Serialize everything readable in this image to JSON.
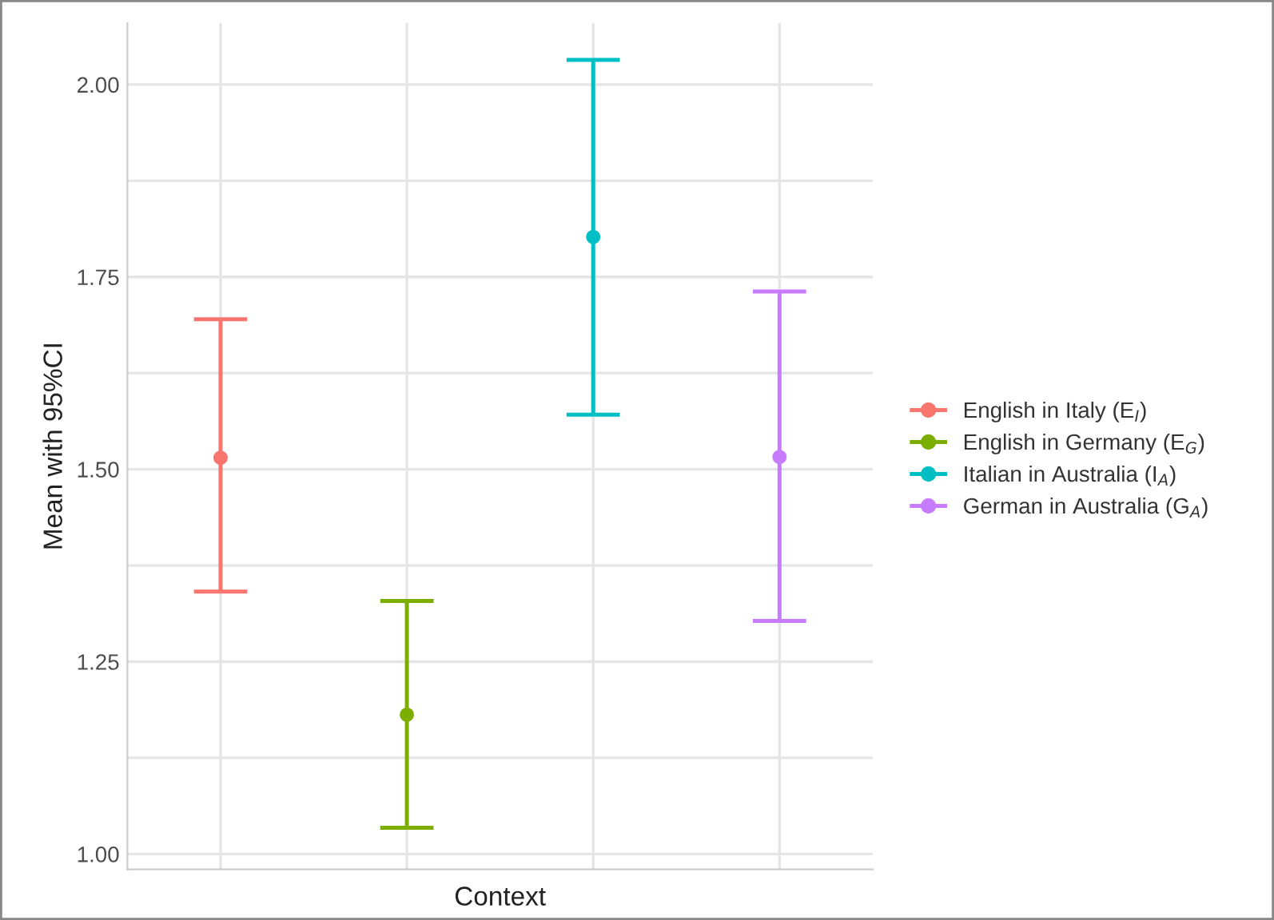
{
  "chart_data": {
    "type": "scatter",
    "xlabel": "Context",
    "ylabel": "Mean with 95%CI",
    "categories": [
      null,
      null,
      null,
      null
    ],
    "series": [
      {
        "name": "English in Italy (E$_{I}$)",
        "color": "#f8766d",
        "values": [
          1.515,
          null,
          null,
          null
        ],
        "errors": [
          [
            1.341,
            1.695
          ],
          null,
          null,
          null
        ]
      },
      {
        "name": "English in Germany (E$_{G}$)",
        "color": "#7cae00",
        "values": [
          null,
          1.181,
          null,
          null
        ],
        "errors": [
          null,
          [
            1.034,
            1.329
          ],
          null,
          null
        ]
      },
      {
        "name": "Italian in Australia (I$_{A}$)",
        "color": "#00bfc4",
        "values": [
          null,
          null,
          1.802,
          null
        ],
        "errors": [
          null,
          null,
          [
            1.571,
            2.032
          ],
          null
        ]
      },
      {
        "name": "German in Australia (G$_{A}$)",
        "color": "#c77cff",
        "values": [
          null,
          null,
          null,
          1.516
        ],
        "errors": [
          null,
          null,
          null,
          [
            1.303,
            1.731
          ]
        ]
      }
    ],
    "ylim": [
      0.98,
      2.08
    ],
    "yticks": [
      {
        "value": 1,
        "label": "1.00"
      },
      {
        "value": 1.125,
        "label": null
      },
      1.25,
      {
        "value": 1.375,
        "label": null
      },
      {
        "value": 1.5,
        "label": "1.50"
      },
      {
        "value": 1.625,
        "label": null
      },
      1.75,
      {
        "value": 1.875,
        "label": null
      },
      {
        "value": 2,
        "label": "2.00"
      }
    ],
    "grid": true,
    "legend": "right",
    "marker": "circle"
  }
}
